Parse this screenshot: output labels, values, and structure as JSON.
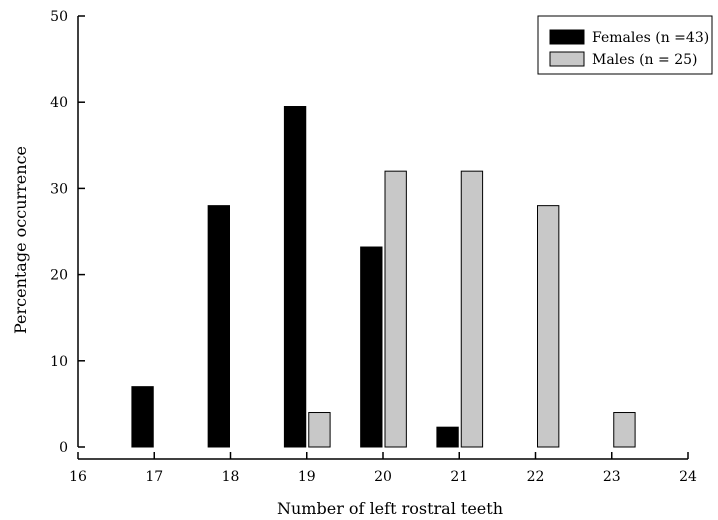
{
  "chart_data": {
    "type": "bar",
    "xlabel": "Number of left rostral teeth",
    "ylabel": "Percentage occurrence",
    "xlim": [
      16,
      24
    ],
    "ylim": [
      0,
      50
    ],
    "x_ticks": [
      "16",
      "17",
      "18",
      "19",
      "20",
      "21",
      "22",
      "23",
      "24"
    ],
    "y_ticks": [
      "0",
      "10",
      "20",
      "30",
      "40",
      "50"
    ],
    "legend_position": "top-right",
    "series": [
      {
        "name": "Females (n =43)",
        "color": "#000000",
        "points": [
          {
            "x": 17,
            "y": 7
          },
          {
            "x": 18,
            "y": 28
          },
          {
            "x": 19,
            "y": 39.5
          },
          {
            "x": 20,
            "y": 23.2
          },
          {
            "x": 21,
            "y": 2.3
          }
        ]
      },
      {
        "name": "Males (n = 25)",
        "color": "#c8c8c8",
        "points": [
          {
            "x": 19,
            "y": 4
          },
          {
            "x": 20,
            "y": 32
          },
          {
            "x": 21,
            "y": 32
          },
          {
            "x": 22,
            "y": 28
          },
          {
            "x": 23,
            "y": 4
          }
        ]
      }
    ]
  }
}
